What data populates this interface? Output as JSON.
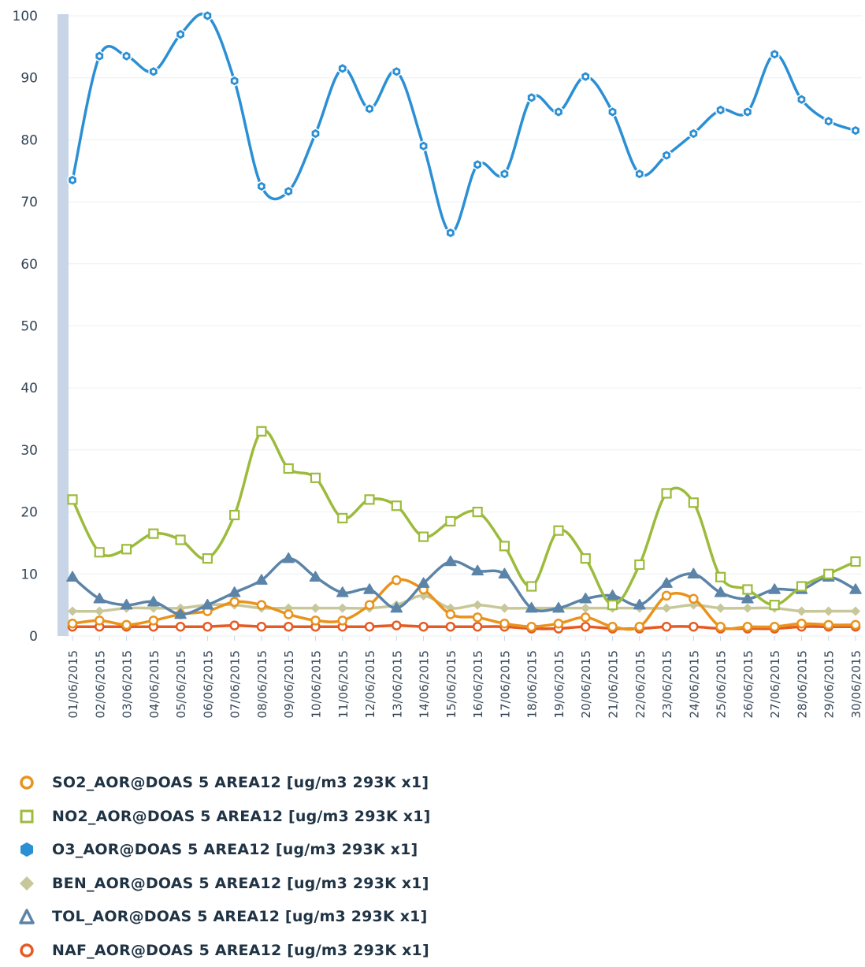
{
  "chart_data": {
    "type": "line",
    "categories": [
      "01/06/2015",
      "02/06/2015",
      "03/06/2015",
      "04/06/2015",
      "05/06/2015",
      "06/06/2015",
      "07/06/2015",
      "08/06/2015",
      "09/06/2015",
      "10/06/2015",
      "11/06/2015",
      "12/06/2015",
      "13/06/2015",
      "14/06/2015",
      "15/06/2015",
      "16/06/2015",
      "17/06/2015",
      "18/06/2015",
      "19/06/2015",
      "20/06/2015",
      "21/06/2015",
      "22/06/2015",
      "23/06/2015",
      "24/06/2015",
      "25/06/2015",
      "26/06/2015",
      "27/06/2015",
      "28/06/2015",
      "29/06/2015",
      "30/06/2015"
    ],
    "ylim": [
      0,
      100
    ],
    "yticks": [
      0,
      10,
      20,
      30,
      40,
      50,
      60,
      70,
      80,
      90,
      100
    ],
    "grid": true,
    "legend_position": "bottom",
    "series": [
      {
        "name": "SO2_AOR@DOAS 5 AREA12 [ug/m3 293K x1]",
        "color": "#e8931c",
        "marker": "circle",
        "values": [
          2.0,
          2.5,
          1.8,
          2.5,
          3.5,
          4.0,
          5.5,
          5.0,
          3.5,
          2.5,
          2.5,
          5.0,
          9.0,
          7.5,
          3.5,
          3.0,
          2.0,
          1.5,
          2.0,
          3.0,
          1.5,
          1.5,
          6.5,
          6.0,
          1.5,
          1.5,
          1.5,
          2.0,
          1.8,
          1.8
        ]
      },
      {
        "name": "NO2_AOR@DOAS 5 AREA12 [ug/m3 293K x1]",
        "color": "#9cbb3c",
        "marker": "square",
        "values": [
          22.0,
          13.5,
          14.0,
          16.5,
          15.5,
          12.5,
          19.5,
          33.0,
          27.0,
          25.5,
          19.0,
          22.0,
          21.0,
          16.0,
          18.5,
          20.0,
          14.5,
          8.0,
          17.0,
          12.5,
          5.0,
          11.5,
          23.0,
          21.5,
          9.5,
          7.5,
          5.0,
          8.0,
          10.0,
          12.0
        ]
      },
      {
        "name": "O3_AOR@DOAS 5 AREA12 [ug/m3 293K x1]",
        "color": "#2b8fd4",
        "marker": "hexagon",
        "values": [
          73.5,
          93.5,
          93.5,
          91.0,
          97.0,
          100.0,
          89.5,
          72.5,
          71.7,
          81.0,
          91.5,
          85.0,
          91.0,
          79.0,
          65.0,
          76.0,
          74.5,
          86.8,
          84.5,
          90.2,
          84.5,
          74.5,
          77.5,
          81.0,
          84.8,
          84.5,
          93.8,
          86.5,
          83.0,
          81.5
        ]
      },
      {
        "name": "BEN_AOR@DOAS 5 AREA12 [ug/m3 293K x1]",
        "color": "#c7c79a",
        "marker": "diamond",
        "values": [
          4.0,
          4.0,
          4.5,
          4.5,
          4.5,
          5.0,
          5.0,
          4.5,
          4.5,
          4.5,
          4.5,
          4.5,
          5.0,
          6.5,
          4.5,
          5.0,
          4.5,
          4.5,
          4.5,
          4.5,
          4.5,
          4.5,
          4.5,
          5.0,
          4.5,
          4.5,
          4.5,
          4.0,
          4.0,
          4.0
        ]
      },
      {
        "name": "TOL_AOR@DOAS 5 AREA12 [ug/m3 293K x1]",
        "color": "#5b84a8",
        "marker": "triangle",
        "values": [
          9.5,
          6.0,
          5.0,
          5.5,
          3.5,
          5.0,
          7.0,
          9.0,
          12.5,
          9.5,
          7.0,
          7.5,
          4.5,
          8.5,
          12.0,
          10.5,
          10.0,
          4.5,
          4.5,
          6.0,
          6.5,
          5.0,
          8.5,
          10.0,
          7.0,
          6.0,
          7.5,
          7.5,
          9.5,
          7.5
        ]
      },
      {
        "name": "NAF_AOR@DOAS 5 AREA12 [ug/m3 293K x1]",
        "color": "#e65a23",
        "marker": "circle",
        "values": [
          1.5,
          1.5,
          1.5,
          1.5,
          1.5,
          1.5,
          1.7,
          1.5,
          1.5,
          1.5,
          1.5,
          1.5,
          1.7,
          1.5,
          1.5,
          1.5,
          1.5,
          1.2,
          1.2,
          1.5,
          1.2,
          1.2,
          1.5,
          1.5,
          1.2,
          1.2,
          1.2,
          1.5,
          1.5,
          1.5
        ]
      }
    ]
  },
  "colors": {
    "axis_band": "#c7d5e6",
    "gridline": "#ebeff3",
    "tick_text": "#334455"
  }
}
